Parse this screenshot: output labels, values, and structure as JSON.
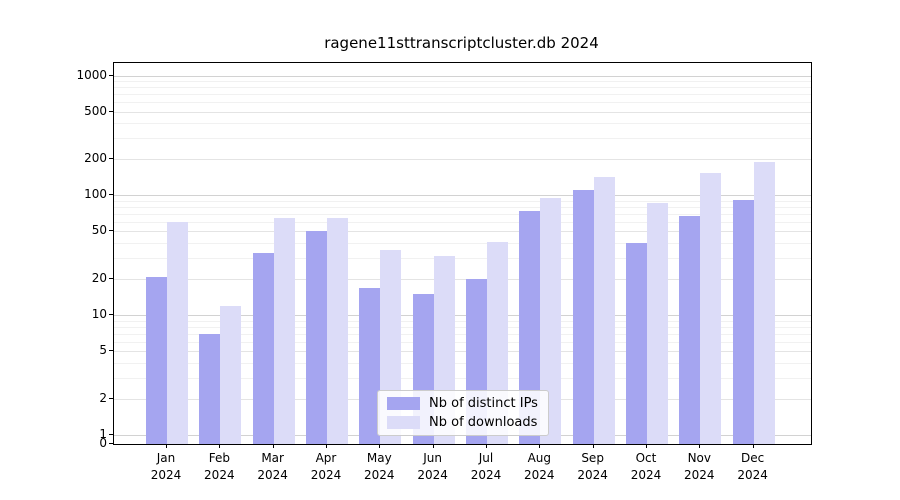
{
  "title": "ragene11sttranscriptcluster.db 2024",
  "chart_data": {
    "type": "bar",
    "title": "ragene11sttranscriptcluster.db 2024",
    "categories": [
      "Jan",
      "Feb",
      "Mar",
      "Apr",
      "May",
      "Jun",
      "Jul",
      "Aug",
      "Sep",
      "Oct",
      "Nov",
      "Dec"
    ],
    "year_label": "2024",
    "series": [
      {
        "name": "Nb of distinct IPs",
        "color": "#a5a5f0",
        "values": [
          21,
          7,
          33,
          50,
          17,
          15,
          20,
          74,
          111,
          40,
          67,
          91
        ]
      },
      {
        "name": "Nb of downloads",
        "color": "#dcdcf8",
        "values": [
          60,
          12,
          65,
          65,
          35,
          31,
          41,
          96,
          142,
          87,
          155,
          191
        ]
      }
    ],
    "yticks": [
      0,
      1,
      2,
      5,
      10,
      20,
      50,
      100,
      200,
      500,
      1000
    ],
    "scale": "log-with-zero-baseline",
    "ylim": [
      0,
      1270
    ],
    "xlabel": "",
    "ylabel": "",
    "grid": true,
    "legend_position": "lower center"
  },
  "colors": {
    "ips_bar": "#a5a5f0",
    "downloads_bar": "#dcdcf8",
    "grid_major": "#d2d2d2",
    "grid_minor": "#f1f1f1",
    "axis": "#000000",
    "background": "#ffffff"
  }
}
